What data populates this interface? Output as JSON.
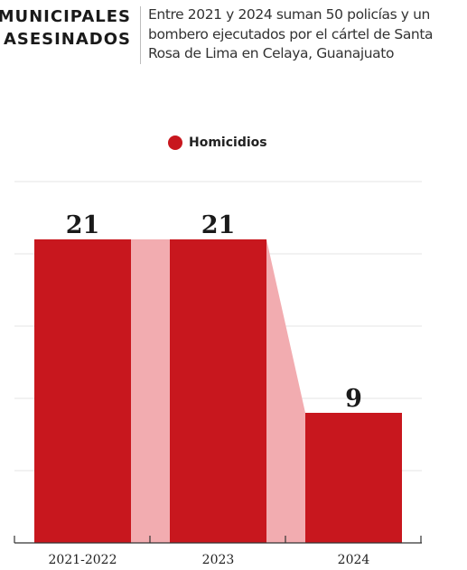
{
  "header": {
    "kicker_line1": "MUNICIPALES",
    "kicker_line2": "ASESINADOS",
    "subtitle_line1": "Entre 2021 y 2024 suman 50 policías y un",
    "subtitle_line2": "bombero ejecutados por el cártel de Santa",
    "subtitle_line3": "Rosa de Lima en Celaya, Guanajuato"
  },
  "legend": {
    "label": "Homicidios",
    "color": "#c8171e"
  },
  "colors": {
    "bar": "#c8171e",
    "connector": "#f2acb0",
    "grid": "#e6e6e6",
    "axis": "#333333"
  },
  "chart_data": {
    "type": "bar",
    "categories": [
      "2021-2022",
      "2023",
      "2024"
    ],
    "series": [
      {
        "name": "Homicidios",
        "values": [
          21,
          21,
          9
        ]
      }
    ],
    "ylim": [
      0,
      25
    ],
    "grid": true,
    "legend_position": "top-center",
    "data_labels": [
      "21",
      "21",
      "9"
    ]
  }
}
